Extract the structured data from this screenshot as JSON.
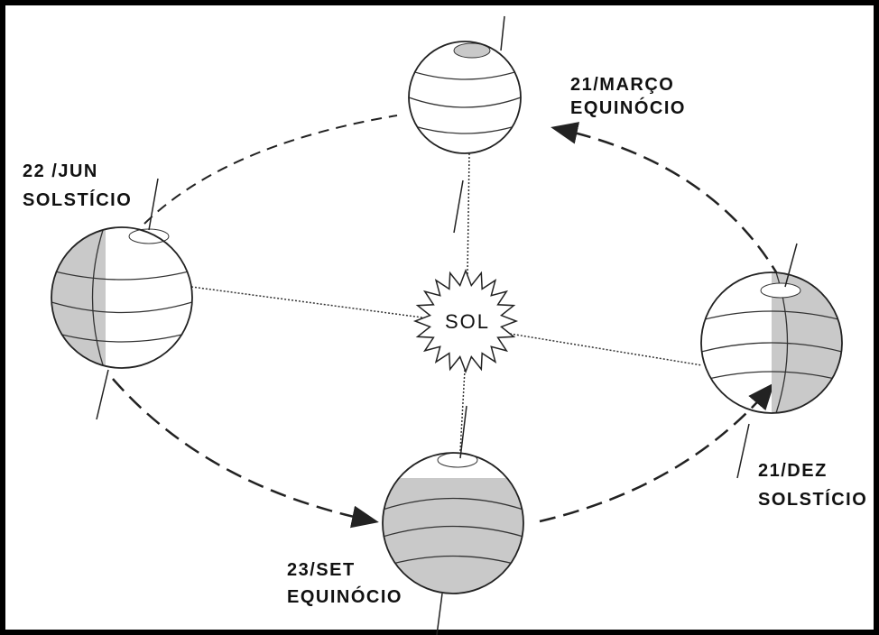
{
  "sun": {
    "label": "SOL"
  },
  "positions": [
    {
      "date": "21/MARÇO",
      "event": "EQUINÓCIO"
    },
    {
      "date": "22 /JUN",
      "event": "SOLSTÍCIO"
    },
    {
      "date": "21/DEZ",
      "event": "SOLSTÍCIO"
    },
    {
      "date": "23/SET",
      "event": "EQUINÓCIO"
    }
  ]
}
